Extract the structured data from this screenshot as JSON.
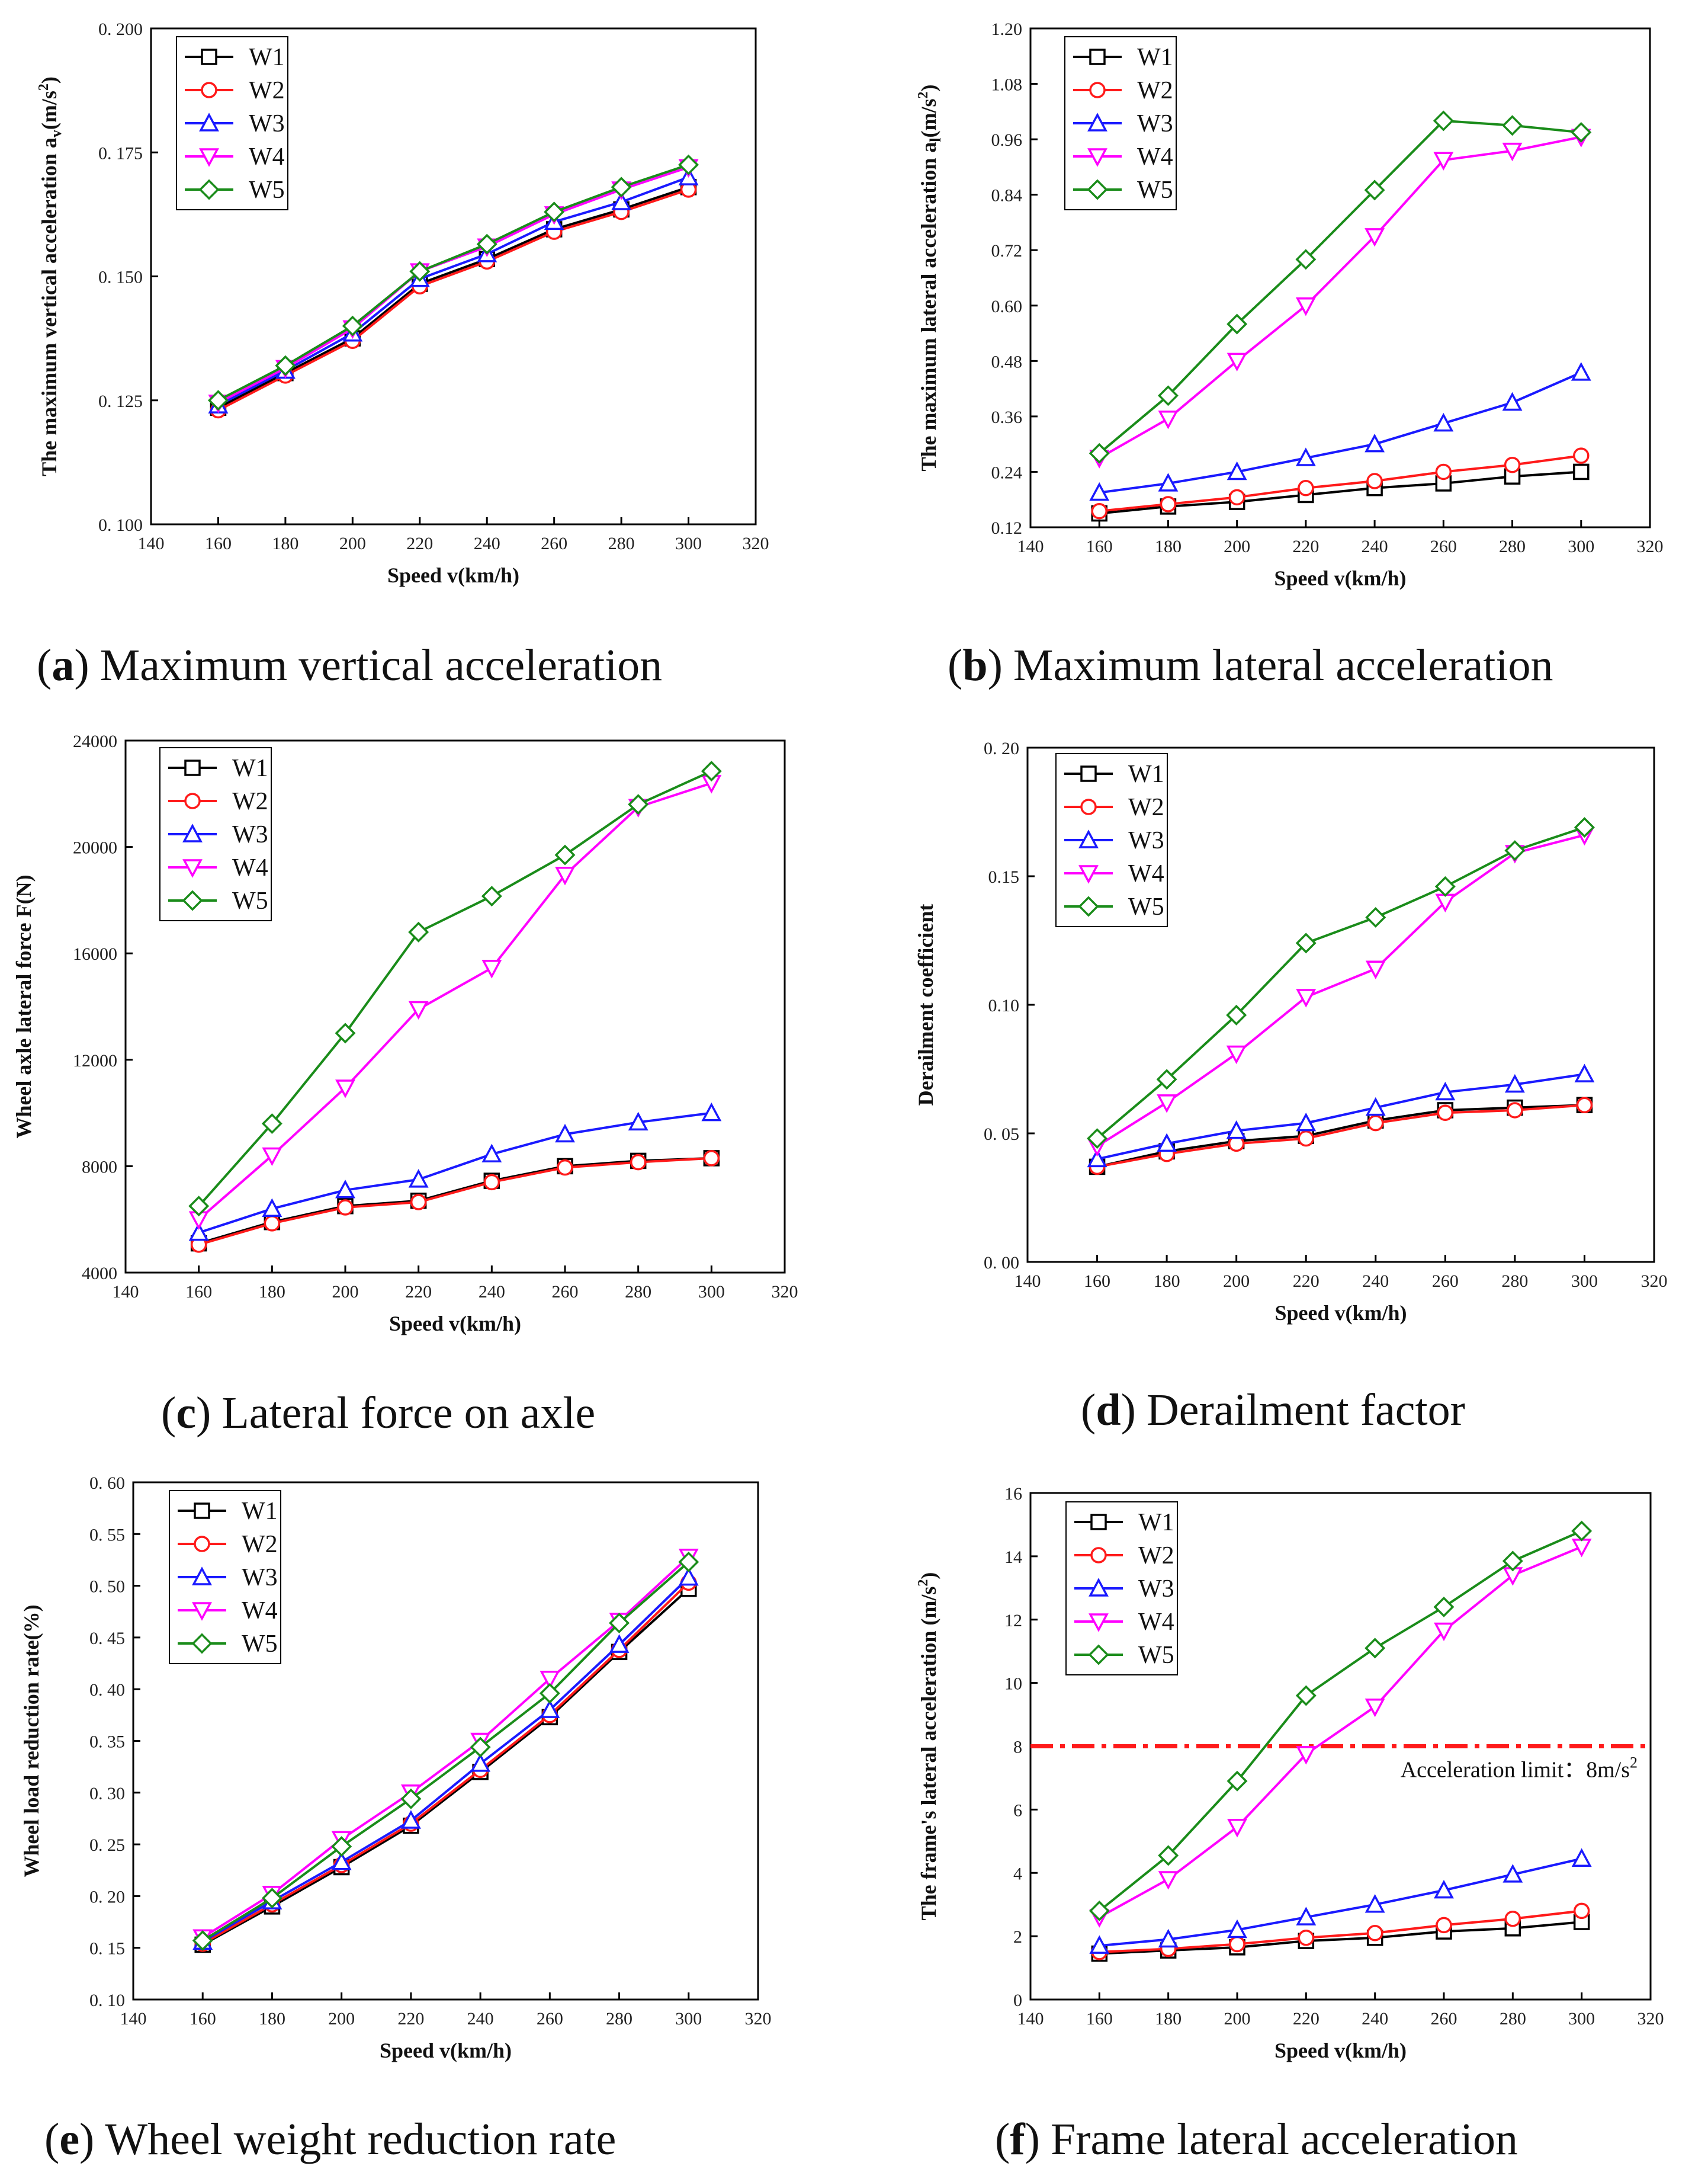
{
  "figure_title": "",
  "series_colors": {
    "W1": "#000000",
    "W2": "#ff1a1a",
    "W3": "#1a1aff",
    "W4": "#ff00ff",
    "W5": "#1a8c1a"
  },
  "series_markers": {
    "W1": "square",
    "W2": "circle",
    "W3": "triangle-up",
    "W4": "triangle-down",
    "W5": "diamond"
  },
  "chart_data": [
    {
      "id": "a",
      "type": "line",
      "caption_letter": "a",
      "caption_text": "Maximum vertical acceleration",
      "caption_open": "(",
      "caption_close": ")",
      "ylabel": "The maximum vertical acceleration a",
      "ylabel_sub": "v",
      "ylabel_unit_open": "(m/s",
      "ylabel_unit_sup": "2",
      "ylabel_unit_close": ")",
      "xlabel": "Speed v(km/h)",
      "xlim": [
        140,
        320
      ],
      "ylim": [
        0.1,
        0.2
      ],
      "xticks": [
        140,
        160,
        180,
        200,
        220,
        240,
        260,
        280,
        300,
        320
      ],
      "xtick_labels": [
        "140",
        "160",
        "180",
        "200",
        "220",
        "240",
        "260",
        "280",
        "300",
        "320"
      ],
      "yticks": [
        0.1,
        0.125,
        0.15,
        0.175,
        0.2
      ],
      "ytick_labels": [
        "0. 100",
        "0. 125",
        "0. 150",
        "0. 175",
        "0. 200"
      ],
      "x": [
        160,
        180,
        200,
        220,
        240,
        260,
        280,
        300
      ],
      "series": [
        {
          "name": "W1",
          "values": [
            0.1235,
            0.1305,
            0.1375,
            0.1485,
            0.1535,
            0.1595,
            0.1635,
            0.168
          ]
        },
        {
          "name": "W2",
          "values": [
            0.123,
            0.13,
            0.137,
            0.148,
            0.153,
            0.159,
            0.163,
            0.1675
          ]
        },
        {
          "name": "W3",
          "values": [
            0.124,
            0.131,
            0.1385,
            0.1495,
            0.1545,
            0.161,
            0.165,
            0.17
          ]
        },
        {
          "name": "W4",
          "values": [
            0.1245,
            0.1315,
            0.1395,
            0.151,
            0.156,
            0.1625,
            0.1675,
            0.172
          ]
        },
        {
          "name": "W5",
          "values": [
            0.125,
            0.132,
            0.14,
            0.151,
            0.1565,
            0.163,
            0.168,
            0.1725
          ]
        }
      ]
    },
    {
      "id": "b",
      "type": "line",
      "caption_letter": "b",
      "caption_text": "Maximum lateral acceleration",
      "caption_open": "(",
      "caption_close": ")",
      "ylabel": "The maximum  lateral acceleration a",
      "ylabel_sub": "l",
      "ylabel_unit_open": "(m/s",
      "ylabel_unit_sup": "2",
      "ylabel_unit_close": ")",
      "xlabel": "Speed v(km/h)",
      "xlim": [
        140,
        320
      ],
      "ylim": [
        0.12,
        1.2
      ],
      "xticks": [
        140,
        160,
        180,
        200,
        220,
        240,
        260,
        280,
        300,
        320
      ],
      "xtick_labels": [
        "140",
        "160",
        "180",
        "200",
        "220",
        "240",
        "260",
        "280",
        "300",
        "320"
      ],
      "yticks": [
        0.12,
        0.24,
        0.36,
        0.48,
        0.6,
        0.72,
        0.84,
        0.96,
        1.08,
        1.2
      ],
      "ytick_labels": [
        "0.12",
        "0.24",
        "0.36",
        "0.48",
        "0.60",
        "0.72",
        "0.84",
        "0.96",
        "1.08",
        "1.20"
      ],
      "x": [
        160,
        180,
        200,
        220,
        240,
        260,
        280,
        300
      ],
      "series": [
        {
          "name": "W1",
          "values": [
            0.15,
            0.165,
            0.175,
            0.19,
            0.205,
            0.215,
            0.23,
            0.24
          ]
        },
        {
          "name": "W2",
          "values": [
            0.155,
            0.17,
            0.185,
            0.205,
            0.22,
            0.24,
            0.255,
            0.275
          ]
        },
        {
          "name": "W3",
          "values": [
            0.195,
            0.215,
            0.24,
            0.27,
            0.3,
            0.345,
            0.39,
            0.455
          ]
        },
        {
          "name": "W4",
          "values": [
            0.27,
            0.355,
            0.48,
            0.6,
            0.75,
            0.915,
            0.935,
            0.965
          ]
        },
        {
          "name": "W5",
          "values": [
            0.28,
            0.405,
            0.56,
            0.7,
            0.85,
            1.0,
            0.99,
            0.975
          ]
        }
      ]
    },
    {
      "id": "c",
      "type": "line",
      "caption_letter": "c",
      "caption_text": "Lateral force on axle",
      "caption_open": "(",
      "caption_close": ")",
      "ylabel": "Wheel axle lateral force  F(N)",
      "ylabel_sub": "",
      "ylabel_unit_open": "",
      "ylabel_unit_sup": "",
      "ylabel_unit_close": "",
      "xlabel": "Speed v(km/h)",
      "xlim": [
        140,
        320
      ],
      "ylim": [
        4000,
        24000
      ],
      "xticks": [
        140,
        160,
        180,
        200,
        220,
        240,
        260,
        280,
        300,
        320
      ],
      "xtick_labels": [
        "140",
        "160",
        "180",
        "200",
        "220",
        "240",
        "260",
        "280",
        "300",
        "320"
      ],
      "yticks": [
        4000,
        8000,
        12000,
        16000,
        20000,
        24000
      ],
      "ytick_labels": [
        "4000",
        "8000",
        "12000",
        "16000",
        "20000",
        "24000"
      ],
      "x": [
        160,
        180,
        200,
        220,
        240,
        260,
        280,
        300
      ],
      "series": [
        {
          "name": "W1",
          "values": [
            5100,
            5900,
            6500,
            6700,
            7450,
            8000,
            8200,
            8300
          ]
        },
        {
          "name": "W2",
          "values": [
            5050,
            5850,
            6450,
            6650,
            7400,
            7950,
            8150,
            8300
          ]
        },
        {
          "name": "W3",
          "values": [
            5500,
            6400,
            7100,
            7500,
            8450,
            9200,
            9650,
            10000
          ]
        },
        {
          "name": "W4",
          "values": [
            6000,
            8400,
            10950,
            13900,
            15450,
            18950,
            21500,
            22400
          ]
        },
        {
          "name": "W5",
          "values": [
            6500,
            9600,
            13000,
            16800,
            18150,
            19700,
            21600,
            22850
          ]
        }
      ]
    },
    {
      "id": "d",
      "type": "line",
      "caption_letter": "d",
      "caption_text": "Derailment factor",
      "caption_open": "(",
      "caption_close": ")",
      "ylabel": "Derailment coefficient",
      "ylabel_sub": "",
      "ylabel_unit_open": "",
      "ylabel_unit_sup": "",
      "ylabel_unit_close": "",
      "xlabel": "Speed v(km/h)",
      "xlim": [
        140,
        320
      ],
      "ylim": [
        0.0,
        0.2
      ],
      "xticks": [
        140,
        160,
        180,
        200,
        220,
        240,
        260,
        280,
        300,
        320
      ],
      "xtick_labels": [
        "140",
        "160",
        "180",
        "200",
        "220",
        "240",
        "260",
        "280",
        "300",
        "320"
      ],
      "yticks": [
        0.0,
        0.05,
        0.1,
        0.15,
        0.2
      ],
      "ytick_labels": [
        "0. 00",
        "0. 05",
        "0.10",
        "0.15",
        "0. 20"
      ],
      "x": [
        160,
        180,
        200,
        220,
        240,
        260,
        280,
        300
      ],
      "series": [
        {
          "name": "W1",
          "values": [
            0.037,
            0.043,
            0.047,
            0.049,
            0.055,
            0.059,
            0.06,
            0.061
          ]
        },
        {
          "name": "W2",
          "values": [
            0.037,
            0.042,
            0.046,
            0.048,
            0.054,
            0.058,
            0.059,
            0.061
          ]
        },
        {
          "name": "W3",
          "values": [
            0.04,
            0.046,
            0.051,
            0.054,
            0.06,
            0.066,
            0.069,
            0.073
          ]
        },
        {
          "name": "W4",
          "values": [
            0.045,
            0.062,
            0.081,
            0.103,
            0.114,
            0.14,
            0.159,
            0.166
          ]
        },
        {
          "name": "W5",
          "values": [
            0.048,
            0.071,
            0.096,
            0.124,
            0.134,
            0.146,
            0.16,
            0.169
          ]
        }
      ]
    },
    {
      "id": "e",
      "type": "line",
      "caption_letter": "e",
      "caption_text": "Wheel weight reduction rate",
      "caption_open": "(",
      "caption_close": ")",
      "ylabel": "Wheel load reduction rate(%)",
      "ylabel_sub": "",
      "ylabel_unit_open": "",
      "ylabel_unit_sup": "",
      "ylabel_unit_close": "",
      "xlabel": "Speed v(km/h)",
      "xlim": [
        140,
        320
      ],
      "ylim": [
        0.1,
        0.6
      ],
      "xticks": [
        140,
        160,
        180,
        200,
        220,
        240,
        260,
        280,
        300,
        320
      ],
      "xtick_labels": [
        "140",
        "160",
        "180",
        "200",
        "220",
        "240",
        "260",
        "280",
        "300",
        "320"
      ],
      "yticks": [
        0.1,
        0.15,
        0.2,
        0.25,
        0.3,
        0.35,
        0.4,
        0.45,
        0.5,
        0.55,
        0.6
      ],
      "ytick_labels": [
        "0. 10",
        "0. 15",
        "0. 20",
        "0. 25",
        "0. 30",
        "0. 35",
        "0. 40",
        "0. 45",
        "0. 50",
        "0. 55",
        "0. 60"
      ],
      "x": [
        160,
        180,
        200,
        220,
        240,
        260,
        280,
        300
      ],
      "series": [
        {
          "name": "W1",
          "values": [
            0.153,
            0.19,
            0.228,
            0.268,
            0.32,
            0.373,
            0.436,
            0.497
          ]
        },
        {
          "name": "W2",
          "values": [
            0.154,
            0.192,
            0.23,
            0.27,
            0.322,
            0.375,
            0.438,
            0.503
          ]
        },
        {
          "name": "W3",
          "values": [
            0.156,
            0.195,
            0.233,
            0.273,
            0.328,
            0.38,
            0.443,
            0.508
          ]
        },
        {
          "name": "W4",
          "values": [
            0.16,
            0.202,
            0.255,
            0.3,
            0.35,
            0.41,
            0.466,
            0.528
          ]
        },
        {
          "name": "W5",
          "values": [
            0.157,
            0.198,
            0.248,
            0.294,
            0.344,
            0.396,
            0.464,
            0.523
          ]
        }
      ]
    },
    {
      "id": "f",
      "type": "line",
      "caption_letter": "f",
      "caption_text": "Frame lateral acceleration",
      "caption_open": "(",
      "caption_close": ")",
      "ylabel": "The frame's lateral acceleration (m/s",
      "ylabel_sub": "",
      "ylabel_unit_open": "",
      "ylabel_unit_sup": "2",
      "ylabel_unit_close": ")",
      "xlabel": "Speed v(km/h)",
      "xlim": [
        140,
        320
      ],
      "ylim": [
        0,
        16
      ],
      "xticks": [
        140,
        160,
        180,
        200,
        220,
        240,
        260,
        280,
        300,
        320
      ],
      "xtick_labels": [
        "140",
        "160",
        "180",
        "200",
        "220",
        "240",
        "260",
        "280",
        "300",
        "320"
      ],
      "yticks": [
        0,
        2,
        4,
        6,
        8,
        10,
        12,
        14,
        16
      ],
      "ytick_labels": [
        "0",
        "2",
        "4",
        "6",
        "8",
        "10",
        "12",
        "14",
        "16"
      ],
      "x": [
        160,
        180,
        200,
        220,
        240,
        260,
        280,
        300
      ],
      "series": [
        {
          "name": "W1",
          "values": [
            1.45,
            1.55,
            1.65,
            1.85,
            1.95,
            2.15,
            2.25,
            2.45
          ]
        },
        {
          "name": "W2",
          "values": [
            1.5,
            1.6,
            1.75,
            1.95,
            2.1,
            2.35,
            2.55,
            2.8
          ]
        },
        {
          "name": "W3",
          "values": [
            1.7,
            1.9,
            2.2,
            2.6,
            3.0,
            3.45,
            3.95,
            4.45
          ]
        },
        {
          "name": "W4",
          "values": [
            2.6,
            3.8,
            5.45,
            7.75,
            9.25,
            11.65,
            13.4,
            14.3
          ]
        },
        {
          "name": "W5",
          "values": [
            2.8,
            4.55,
            6.9,
            9.6,
            11.1,
            12.4,
            13.85,
            14.8
          ]
        }
      ],
      "reference_line": {
        "value": 8,
        "color": "#ff1a1a",
        "label": "Acceleration limit：8m/s",
        "label_sup": "2"
      }
    }
  ]
}
